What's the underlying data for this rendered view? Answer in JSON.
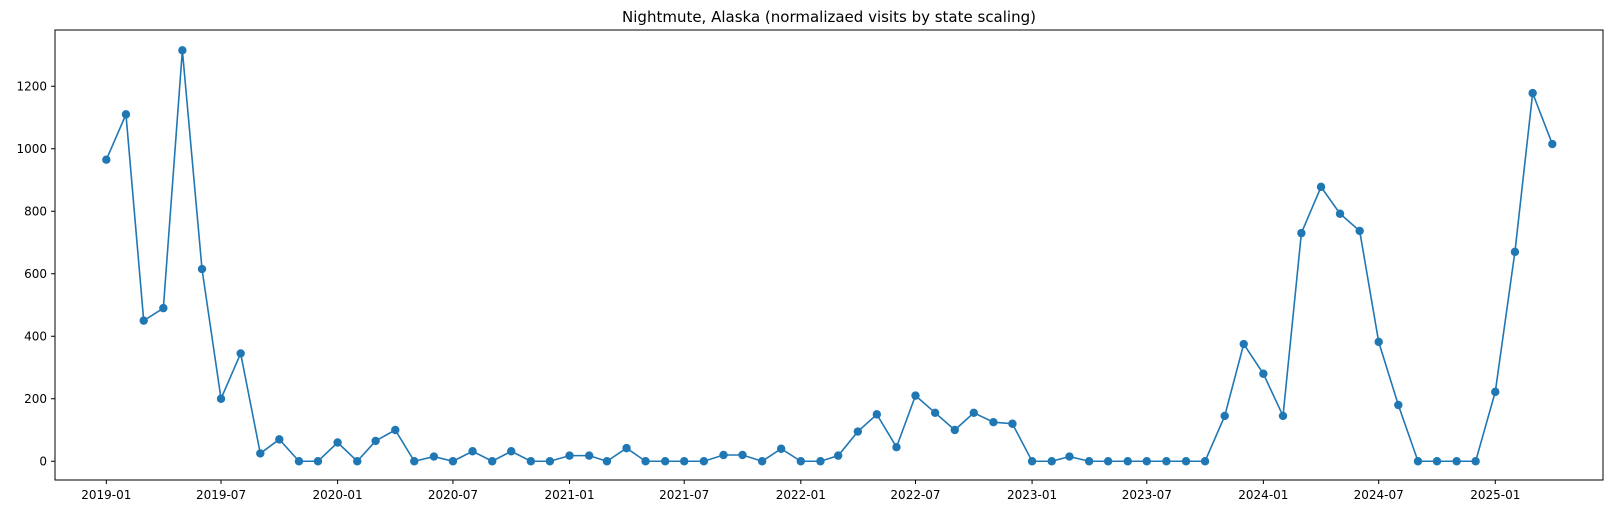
{
  "chart_data": {
    "type": "line",
    "title": "Nightmute, Alaska (normalizaed visits by state scaling)",
    "xlabel": "",
    "ylabel": "",
    "x_axis_type": "date",
    "xlim": [
      "2018-10-12",
      "2025-06-20"
    ],
    "ylim": [
      -60,
      1380
    ],
    "x_ticks": [
      "2019-01",
      "2019-07",
      "2020-01",
      "2020-07",
      "2021-01",
      "2021-07",
      "2022-01",
      "2022-07",
      "2023-01",
      "2023-07",
      "2024-01",
      "2024-07",
      "2025-01"
    ],
    "y_ticks": [
      0,
      200,
      400,
      600,
      800,
      1000,
      1200
    ],
    "color": "#1f77b4",
    "marker": "circle",
    "grid": false,
    "series": [
      {
        "x": [
          "2019-01-01",
          "2019-02-01",
          "2019-03-01",
          "2019-04-01",
          "2019-05-01",
          "2019-06-01",
          "2019-07-01",
          "2019-08-01",
          "2019-09-01",
          "2019-10-01",
          "2019-11-01",
          "2019-12-01",
          "2020-01-01",
          "2020-02-01",
          "2020-03-01",
          "2020-04-01",
          "2020-05-01",
          "2020-06-01",
          "2020-07-01",
          "2020-08-01",
          "2020-09-01",
          "2020-10-01",
          "2020-11-01",
          "2020-12-01",
          "2021-01-01",
          "2021-02-01",
          "2021-03-01",
          "2021-04-01",
          "2021-05-01",
          "2021-06-01",
          "2021-07-01",
          "2021-08-01",
          "2021-09-01",
          "2021-10-01",
          "2021-11-01",
          "2021-12-01",
          "2022-01-01",
          "2022-02-01",
          "2022-03-01",
          "2022-04-01",
          "2022-05-01",
          "2022-06-01",
          "2022-07-01",
          "2022-08-01",
          "2022-09-01",
          "2022-10-01",
          "2022-11-01",
          "2022-12-01",
          "2023-01-01",
          "2023-02-01",
          "2023-03-01",
          "2023-04-01",
          "2023-05-01",
          "2023-06-01",
          "2023-07-01",
          "2023-08-01",
          "2023-09-01",
          "2023-10-01",
          "2023-11-01",
          "2023-12-01",
          "2024-01-01",
          "2024-02-01",
          "2024-03-01",
          "2024-04-01",
          "2024-05-01",
          "2024-06-01",
          "2024-07-01",
          "2024-08-01",
          "2024-09-01",
          "2024-10-01",
          "2024-11-01",
          "2024-12-01",
          "2025-01-01",
          "2025-02-01",
          "2025-03-01",
          "2025-04-01"
        ],
        "y": [
          965,
          1110,
          450,
          490,
          1315,
          615,
          200,
          345,
          25,
          70,
          0,
          0,
          60,
          0,
          65,
          100,
          0,
          15,
          0,
          32,
          0,
          32,
          0,
          0,
          18,
          18,
          0,
          42,
          0,
          0,
          0,
          0,
          20,
          20,
          0,
          40,
          0,
          0,
          18,
          95,
          150,
          45,
          210,
          155,
          100,
          155,
          125,
          120,
          0,
          0,
          15,
          0,
          0,
          0,
          0,
          0,
          0,
          0,
          145,
          375,
          280,
          145,
          730,
          878,
          792,
          737,
          382,
          180,
          0,
          0,
          0,
          0,
          222,
          670,
          1178,
          1015
        ]
      }
    ]
  }
}
